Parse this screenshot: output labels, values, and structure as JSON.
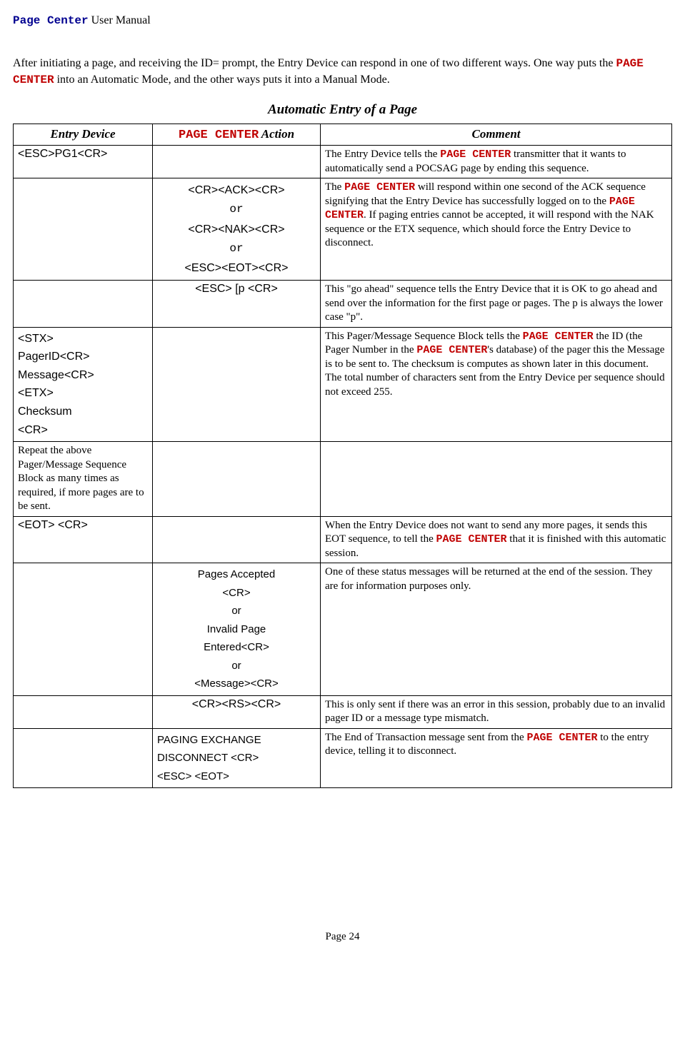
{
  "header": {
    "product": "Page Center",
    "suffix": " User Manual"
  },
  "intro": {
    "p1a": "After initiating a page, and receiving the ID= prompt, the Entry Device can respond in one of two different ways.  One way puts the ",
    "p1b": " into an Automatic Mode, and the other ways puts it into a Manual Mode."
  },
  "section_title": "Automatic Entry of a Page",
  "table": {
    "headers": {
      "entry": "Entry Device",
      "action_prefix": "PAGE CENTER",
      "action_suffix": " Action",
      "comment": "Comment"
    },
    "rows": [
      {
        "entry": "<ESC>PG1<CR>",
        "comment_a": "The Entry Device tells the ",
        "comment_b": " transmitter that it wants to automatically send a POCSAG page by ending this sequence."
      },
      {
        "action1": "<CR><ACK><CR>",
        "action_or1": "or",
        "action2": "<CR><NAK><CR>",
        "action_or2": "or",
        "action3": "<ESC><EOT><CR>",
        "comment_a": "The ",
        "comment_b": " will respond within one second of the ACK sequence signifying that the Entry Device has successfully logged on to the ",
        "comment_c": ".  If paging entries cannot be accepted, it will respond with the NAK sequence or the ETX sequence, which should force the Entry Device to disconnect."
      },
      {
        "action": "<ESC> [p <CR>",
        "comment": "This \"go ahead\" sequence tells the Entry Device that it is OK to go ahead and send over the information for the first page or pages. The p is always the lower case \"p\"."
      },
      {
        "entry1": "<STX>",
        "entry2": "PagerID<CR>",
        "entry3": "Message<CR>",
        "entry4": "<ETX>",
        "entry5": "Checksum",
        "entry6": "<CR>",
        "comment_a": "This Pager/Message Sequence Block tells the ",
        "comment_b": " the ID (the Pager Number in the ",
        "comment_c": "'s database) of the pager this the Message is to be sent to.  The checksum is computes as shown later in this document. The total number of characters sent from the Entry Device per sequence should not exceed 255."
      },
      {
        "entry": "Repeat the above Pager/Message Sequence Block as many times as required, if more pages are to be sent."
      },
      {
        "entry": "<EOT> <CR>",
        "comment_a": "When the Entry Device does not want to send any more pages, it sends this EOT sequence, to tell the ",
        "comment_b": " that it is finished with this automatic session."
      },
      {
        "action1": "Pages Accepted",
        "action2": "<CR>",
        "action_or1": "or",
        "action3": "Invalid Page",
        "action4": "Entered<CR>",
        "action_or2": "or",
        "action5": "<Message><CR>",
        "comment": "One of these status messages will be returned at the end of the session.  They are for information purposes only."
      },
      {
        "action": "<CR><RS><CR>",
        "comment": "This is only sent if there was an error in this session, probably due to an invalid pager ID or a message type mismatch."
      },
      {
        "action1": "PAGING EXCHANGE",
        "action2": "DISCONNECT <CR>",
        "action3": "<ESC> <EOT>",
        "comment_a": "The End of Transaction message sent from the ",
        "comment_b": " to the entry device, telling it to disconnect."
      }
    ]
  },
  "product_upper": "PAGE CENTER",
  "footer": "Page 24"
}
